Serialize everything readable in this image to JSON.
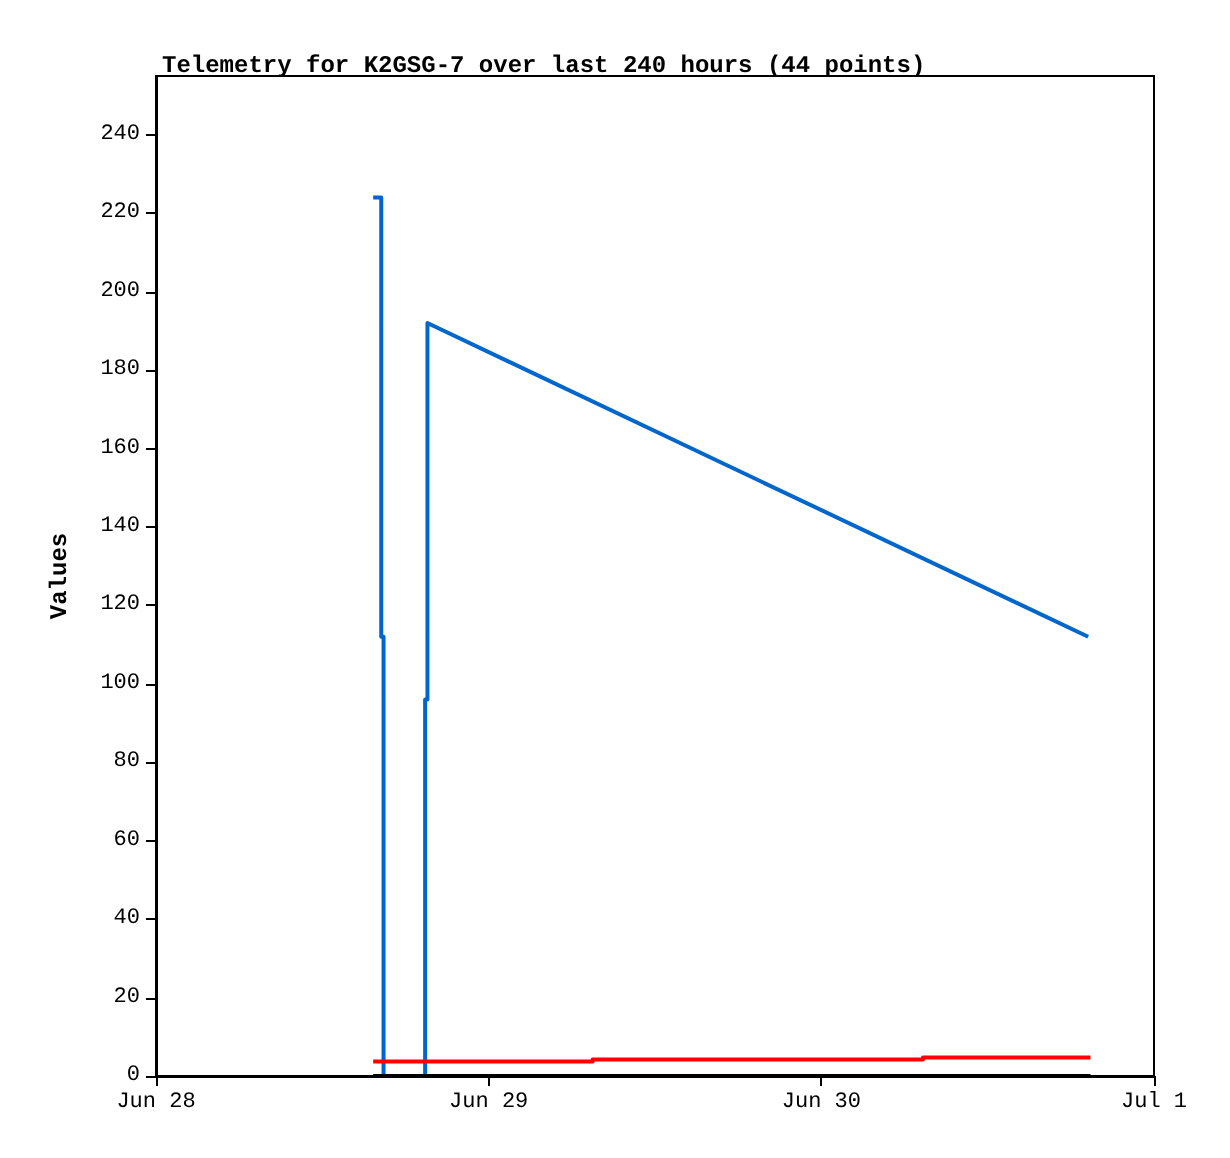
{
  "chart_data": {
    "type": "line",
    "title": "Telemetry for K2GSG-7 over last 240 hours (44 points)",
    "ylabel": "Values",
    "xlim": [
      "--06-28T00:00",
      "--07-01T00:00"
    ],
    "xticks": [
      {
        "value": "--06-28T00:00",
        "label": "Jun 28"
      },
      {
        "value": "--06-29T00:00",
        "label": "Jun 29"
      },
      {
        "value": "--06-30T00:00",
        "label": "Jun 30"
      },
      {
        "value": "--07-01T00:00",
        "label": "Jul 1"
      }
    ],
    "ylim": [
      0,
      255
    ],
    "yticks": [
      0,
      20,
      40,
      60,
      80,
      100,
      120,
      140,
      160,
      180,
      200,
      220,
      240
    ],
    "grid": false,
    "marker": "none",
    "line_style": "solid",
    "series": [
      {
        "color": "#0066cc",
        "x": [
          "--06-28T15:40",
          "--06-28T16:15",
          "--06-28T16:15",
          "--06-28T16:25",
          "--06-28T16:25",
          "--06-28T19:25",
          "--06-28T19:25",
          "--06-28T19:35",
          "--06-28T19:35",
          "--06-30T19:15"
        ],
        "values": [
          224,
          224,
          112,
          112,
          0,
          0,
          96,
          96,
          192,
          112
        ]
      },
      {
        "color": "#ff0000",
        "x": [
          "--06-28T15:40",
          "--06-29T07:30",
          "--06-29T07:30",
          "--06-30T07:20",
          "--06-30T07:20",
          "--06-30T19:25"
        ],
        "values": [
          3.7,
          3.7,
          4.2,
          4.2,
          4.7,
          4.7
        ]
      },
      {
        "color": "#000000",
        "x": [
          "--06-28T15:40",
          "--06-30T19:25"
        ],
        "values": [
          0,
          0
        ]
      }
    ]
  }
}
